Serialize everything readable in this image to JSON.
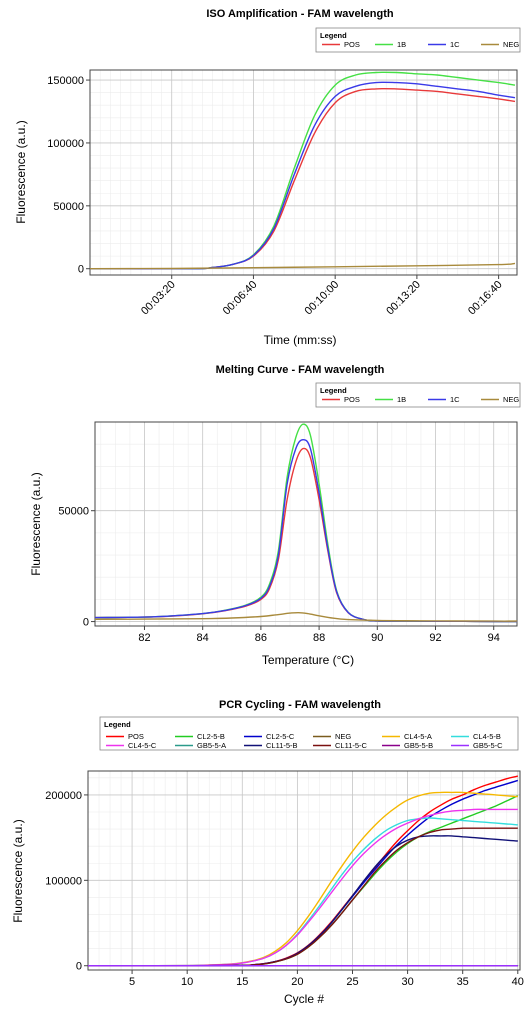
{
  "chart_data": [
    {
      "type": "line",
      "title": "ISO Amplification - FAM wavelength",
      "xlabel": "Time (mm:ss)",
      "ylabel": "Fluorescence (a.u.)",
      "legend_title": "Legend",
      "legend_placement": "top-right",
      "xlim": [
        0,
        1045
      ],
      "ylim": [
        -5000,
        158000
      ],
      "x_ticks": [
        200,
        400,
        600,
        800,
        1000
      ],
      "x_tick_labels": [
        "00:03:20",
        "00:06:40",
        "00:10:00",
        "00:13:20",
        "00:16:40"
      ],
      "y_ticks": [
        0,
        50000,
        100000,
        150000
      ],
      "y_tick_labels": [
        "0",
        "50000",
        "100000",
        "150000"
      ],
      "grid": true,
      "series": [
        {
          "name": "POS",
          "color": "#e8393a",
          "x": [
            0,
            250,
            300,
            350,
            400,
            450,
            500,
            550,
            600,
            650,
            700,
            750,
            800,
            850,
            900,
            950,
            1000,
            1040
          ],
          "y": [
            0,
            0,
            1000,
            3500,
            10000,
            30000,
            70000,
            108000,
            132000,
            141000,
            143000,
            143000,
            142000,
            141000,
            139000,
            137000,
            135000,
            133000
          ]
        },
        {
          "name": "1B",
          "color": "#45e045",
          "x": [
            0,
            250,
            300,
            350,
            400,
            450,
            500,
            550,
            600,
            650,
            700,
            750,
            800,
            850,
            900,
            950,
            1000,
            1040
          ],
          "y": [
            0,
            0,
            1000,
            3500,
            11000,
            34000,
            80000,
            122000,
            146000,
            154000,
            156000,
            156000,
            155000,
            154000,
            152000,
            150000,
            148000,
            146000
          ]
        },
        {
          "name": "1C",
          "color": "#3a3ae8",
          "x": [
            0,
            250,
            300,
            350,
            400,
            450,
            500,
            550,
            600,
            650,
            700,
            750,
            800,
            850,
            900,
            950,
            1000,
            1040
          ],
          "y": [
            0,
            0,
            1000,
            3500,
            10500,
            32000,
            75000,
            114000,
            137000,
            145000,
            148000,
            148000,
            147000,
            145000,
            143000,
            141000,
            138000,
            136000
          ]
        },
        {
          "name": "NEG",
          "color": "#a88a3c",
          "x": [
            0,
            200,
            400,
            600,
            800,
            1000,
            1040
          ],
          "y": [
            0,
            200,
            800,
            1500,
            2300,
            3300,
            4200
          ]
        }
      ]
    },
    {
      "type": "line",
      "title": "Melting Curve - FAM wavelength",
      "xlabel": "Temperature (°C)",
      "ylabel": "Fluorescence (a.u.)",
      "legend_title": "Legend",
      "legend_placement": "top-right",
      "xlim": [
        80.3,
        94.8
      ],
      "ylim": [
        -2000,
        90000
      ],
      "x_ticks": [
        82,
        84,
        86,
        88,
        90,
        92,
        94
      ],
      "x_tick_labels": [
        "82",
        "84",
        "86",
        "88",
        "90",
        "92",
        "94"
      ],
      "y_ticks": [
        0,
        50000
      ],
      "y_tick_labels": [
        "0",
        "50000"
      ],
      "grid": true,
      "series": [
        {
          "name": "POS",
          "color": "#e8393a",
          "x": [
            80.3,
            82,
            83,
            84,
            84.8,
            85.5,
            86,
            86.3,
            86.6,
            86.9,
            87.2,
            87.45,
            87.7,
            88,
            88.3,
            88.6,
            89,
            89.5,
            90,
            91,
            92,
            93,
            94,
            94.8
          ],
          "y": [
            1800,
            2000,
            2500,
            3500,
            5000,
            7000,
            10000,
            15000,
            28000,
            55000,
            72000,
            78000,
            74000,
            55000,
            32000,
            13000,
            4000,
            1000,
            300,
            200,
            100,
            100,
            0,
            0
          ]
        },
        {
          "name": "1B",
          "color": "#45e045",
          "x": [
            80.3,
            82,
            83,
            84,
            84.8,
            85.5,
            86,
            86.3,
            86.6,
            86.9,
            87.2,
            87.45,
            87.7,
            88,
            88.3,
            88.6,
            89,
            89.5,
            90,
            91,
            92,
            93,
            94,
            94.8
          ],
          "y": [
            1800,
            2000,
            2600,
            3600,
            5200,
            7500,
            11000,
            17000,
            32000,
            65000,
            83000,
            89000,
            84000,
            62000,
            35000,
            14000,
            4200,
            1000,
            300,
            200,
            100,
            100,
            0,
            0
          ]
        },
        {
          "name": "1C",
          "color": "#3a3ae8",
          "x": [
            80.3,
            82,
            83,
            84,
            84.8,
            85.5,
            86,
            86.3,
            86.6,
            86.9,
            87.2,
            87.45,
            87.7,
            88,
            88.3,
            88.6,
            89,
            89.5,
            90,
            91,
            92,
            93,
            94,
            94.8
          ],
          "y": [
            1800,
            2000,
            2600,
            3600,
            5100,
            7300,
            10500,
            16000,
            30000,
            62000,
            78000,
            82000,
            78000,
            58000,
            33000,
            13500,
            4100,
            1000,
            300,
            200,
            100,
            100,
            0,
            0
          ]
        },
        {
          "name": "NEG",
          "color": "#a88a3c",
          "x": [
            80.3,
            82,
            84,
            85,
            86,
            86.5,
            87,
            87.3,
            87.6,
            88,
            88.5,
            89,
            90,
            92,
            94,
            94.8
          ],
          "y": [
            1000,
            1100,
            1300,
            1600,
            2300,
            3000,
            3800,
            4000,
            3600,
            2600,
            1500,
            900,
            500,
            300,
            200,
            200
          ]
        }
      ]
    },
    {
      "type": "line",
      "title": "PCR Cycling - FAM wavelength",
      "xlabel": "Cycle #",
      "ylabel": "Fluorescence (a.u.)",
      "legend_title": "Legend",
      "legend_placement": "top",
      "xlim": [
        1,
        40.2
      ],
      "ylim": [
        -5000,
        228000
      ],
      "x_ticks": [
        5,
        10,
        15,
        20,
        25,
        30,
        35,
        40
      ],
      "x_tick_labels": [
        "5",
        "10",
        "15",
        "20",
        "25",
        "30",
        "35",
        "40"
      ],
      "y_ticks": [
        0,
        100000,
        200000
      ],
      "y_tick_labels": [
        "0",
        "100000",
        "200000"
      ],
      "grid": true,
      "series": [
        {
          "name": "POS",
          "color": "#ff0000",
          "x": [
            1,
            10,
            15,
            16,
            17,
            18,
            19,
            20,
            21,
            22,
            23,
            24,
            25,
            26,
            27,
            28,
            29,
            30,
            31,
            32,
            33,
            34,
            35,
            36,
            37,
            38,
            39,
            40
          ],
          "y": [
            0,
            0,
            500,
            1200,
            2500,
            5000,
            9000,
            15000,
            24000,
            36000,
            50000,
            66000,
            82000,
            98000,
            114000,
            130000,
            145000,
            158000,
            170000,
            180000,
            188000,
            195000,
            200000,
            206000,
            211000,
            215000,
            219000,
            222000
          ]
        },
        {
          "name": "CL2-5-B",
          "color": "#22cc22",
          "x": [
            1,
            10,
            15,
            16,
            17,
            18,
            19,
            20,
            21,
            22,
            23,
            24,
            25,
            26,
            27,
            28,
            29,
            30,
            31,
            32,
            33,
            34,
            35,
            36,
            37,
            38,
            39,
            40
          ],
          "y": [
            0,
            0,
            400,
            1000,
            2200,
            4500,
            8000,
            13500,
            22000,
            33000,
            46000,
            61000,
            77000,
            92000,
            107000,
            121000,
            133000,
            143000,
            151000,
            157000,
            162000,
            167000,
            172000,
            177000,
            182000,
            187000,
            193000,
            199000
          ]
        },
        {
          "name": "CL2-5-C",
          "color": "#0000cc",
          "x": [
            1,
            10,
            15,
            16,
            17,
            18,
            19,
            20,
            21,
            22,
            23,
            24,
            25,
            26,
            27,
            28,
            29,
            30,
            31,
            32,
            33,
            34,
            35,
            36,
            37,
            38,
            39,
            40
          ],
          "y": [
            0,
            0,
            450,
            1100,
            2400,
            4800,
            8500,
            14500,
            23500,
            35000,
            49000,
            65000,
            81000,
            97000,
            112000,
            127000,
            141000,
            153000,
            164000,
            174000,
            182000,
            189000,
            195000,
            200000,
            205000,
            209000,
            213000,
            217000
          ]
        },
        {
          "name": "NEG",
          "color": "#7a5c1e",
          "x": [
            1,
            10,
            20,
            30,
            40
          ],
          "y": [
            0,
            0,
            0,
            0,
            0
          ]
        },
        {
          "name": "CL4-5-A",
          "color": "#f5b800",
          "x": [
            1,
            5,
            10,
            12,
            14,
            15,
            16,
            17,
            18,
            19,
            20,
            21,
            22,
            23,
            24,
            25,
            26,
            27,
            28,
            29,
            30,
            31,
            32,
            33,
            34,
            35,
            36,
            37,
            38,
            39,
            40
          ],
          "y": [
            0,
            0,
            200,
            800,
            2000,
            3500,
            6000,
            10000,
            17000,
            27000,
            41000,
            58000,
            77000,
            97000,
            116000,
            134000,
            150000,
            164000,
            176000,
            186000,
            194000,
            199000,
            202000,
            203000,
            203000,
            203000,
            202000,
            201000,
            200000,
            199000,
            198000
          ]
        },
        {
          "name": "CL4-5-B",
          "color": "#33dddd",
          "x": [
            1,
            5,
            10,
            12,
            14,
            15,
            16,
            17,
            18,
            19,
            20,
            21,
            22,
            23,
            24,
            25,
            26,
            27,
            28,
            29,
            30,
            31,
            32,
            33,
            34,
            35,
            36,
            37,
            38,
            39,
            40
          ],
          "y": [
            0,
            0,
            200,
            700,
            1800,
            3200,
            5500,
            9000,
            15000,
            24000,
            37000,
            53000,
            70000,
            88000,
            106000,
            122000,
            136000,
            148000,
            158000,
            165000,
            170000,
            172000,
            173000,
            172000,
            171000,
            170000,
            169000,
            168000,
            167000,
            166000,
            165000
          ]
        },
        {
          "name": "CL4-5-C",
          "color": "#ee33ee",
          "x": [
            1,
            5,
            10,
            12,
            14,
            15,
            16,
            17,
            18,
            19,
            20,
            21,
            22,
            23,
            24,
            25,
            26,
            27,
            28,
            29,
            30,
            31,
            32,
            33,
            34,
            35,
            36,
            37,
            38,
            39,
            40
          ],
          "y": [
            0,
            0,
            200,
            700,
            1800,
            3200,
            5500,
            9000,
            15000,
            24000,
            36000,
            51000,
            67000,
            84000,
            101000,
            117000,
            131000,
            143000,
            153000,
            161000,
            167000,
            172000,
            176000,
            179000,
            181000,
            182000,
            183000,
            183000,
            183000,
            183000,
            183000
          ]
        },
        {
          "name": "GB5-5-A",
          "color": "#2a9a8a",
          "x": [
            1,
            10,
            20,
            30,
            40
          ],
          "y": [
            0,
            0,
            0,
            0,
            0
          ]
        },
        {
          "name": "CL11-5-B",
          "color": "#111177",
          "x": [
            1,
            10,
            15,
            16,
            17,
            18,
            19,
            20,
            21,
            22,
            23,
            24,
            25,
            26,
            27,
            28,
            29,
            30,
            31,
            32,
            33,
            34,
            35,
            36,
            37,
            38,
            39,
            40
          ],
          "y": [
            0,
            0,
            450,
            1100,
            2400,
            4800,
            8500,
            14500,
            23500,
            35000,
            49000,
            65000,
            82000,
            99000,
            115000,
            129000,
            140000,
            147000,
            151000,
            152000,
            152000,
            152000,
            151000,
            150000,
            149000,
            148000,
            147000,
            146000
          ]
        },
        {
          "name": "CL11-5-C",
          "color": "#7a1010",
          "x": [
            1,
            10,
            15,
            16,
            17,
            18,
            19,
            20,
            21,
            22,
            23,
            24,
            25,
            26,
            27,
            28,
            29,
            30,
            31,
            32,
            33,
            34,
            35,
            36,
            37,
            38,
            39,
            40
          ],
          "y": [
            0,
            0,
            400,
            1000,
            2200,
            4500,
            8000,
            13500,
            22000,
            33000,
            46000,
            61000,
            77000,
            93000,
            109000,
            123000,
            135000,
            144000,
            151000,
            156000,
            159000,
            160000,
            161000,
            161000,
            161000,
            161000,
            161000,
            161000
          ]
        },
        {
          "name": "GB5-5-B",
          "color": "#8a008a",
          "x": [
            1,
            10,
            20,
            30,
            40
          ],
          "y": [
            0,
            0,
            0,
            0,
            0
          ]
        },
        {
          "name": "GB5-5-C",
          "color": "#9b30ff",
          "x": [
            1,
            10,
            20,
            30,
            40
          ],
          "y": [
            0,
            0,
            0,
            0,
            0
          ]
        }
      ]
    }
  ]
}
